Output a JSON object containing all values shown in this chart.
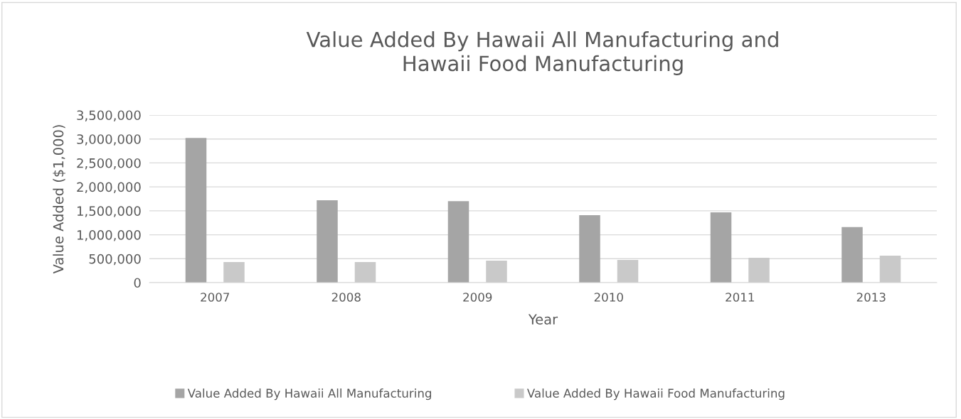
{
  "chart_data": {
    "type": "bar",
    "title": "Value Added By Hawaii All Manufacturing and\nHawaii Food Manufacturing",
    "xlabel": "Year",
    "ylabel": "Value Added ($1,000)",
    "categories": [
      "2007",
      "2008",
      "2009",
      "2010",
      "2011",
      "2013"
    ],
    "series": [
      {
        "name": "Value Added By Hawaii All Manufacturing",
        "color": "#a5a5a5",
        "values": [
          3020000,
          1720000,
          1700000,
          1410000,
          1470000,
          1160000
        ]
      },
      {
        "name": "Value Added By Hawaii Food Manufacturing",
        "color": "#c9c9c9",
        "values": [
          430000,
          430000,
          460000,
          475000,
          520000,
          565000
        ]
      }
    ],
    "ylim": [
      0,
      3500000
    ],
    "yticks": [
      {
        "value": 0,
        "label": "0"
      },
      {
        "value": 500000,
        "label": "500,000"
      },
      {
        "value": 1000000,
        "label": "1,000,000"
      },
      {
        "value": 1500000,
        "label": "1,500,000"
      },
      {
        "value": 2000000,
        "label": "2,000,000"
      },
      {
        "value": 2500000,
        "label": "2,500,000"
      },
      {
        "value": 3000000,
        "label": "3,000,000"
      },
      {
        "value": 3500000,
        "label": "3,500,000"
      }
    ],
    "grid": "y",
    "legend": "bottom"
  }
}
